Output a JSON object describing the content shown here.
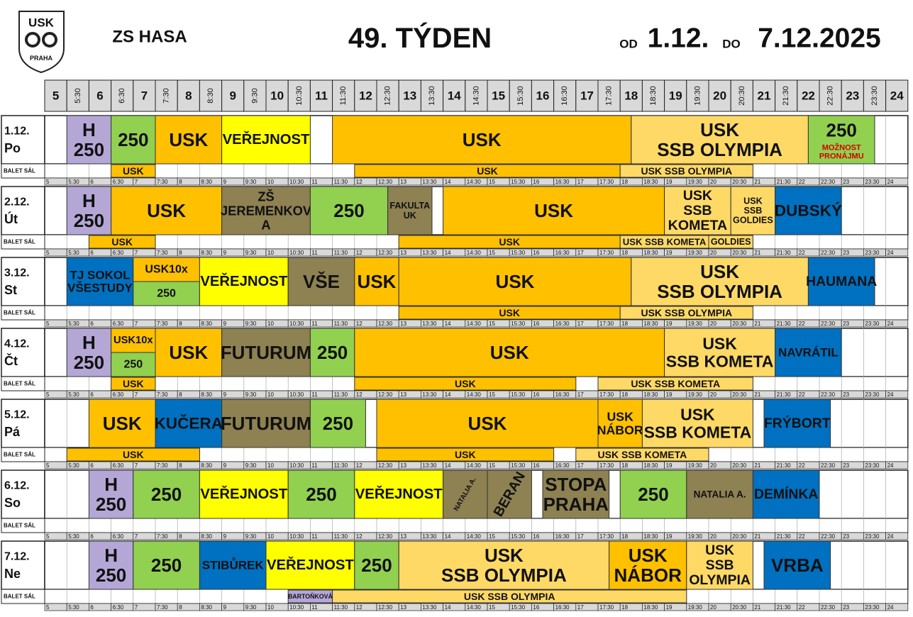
{
  "header": {
    "logo_top": "USK",
    "logo_bottom": "PRAHA",
    "venue": "ZS HASA",
    "week": "49. TÝDEN",
    "od": "OD",
    "from": "1.12.",
    "do": "DO",
    "to": "7.12.2025"
  },
  "times": [
    5,
    "5:30",
    6,
    "6:30",
    7,
    "7:30",
    8,
    "8:30",
    9,
    "9:30",
    10,
    "10:30",
    11,
    "11:30",
    12,
    "12:30",
    13,
    "13:30",
    14,
    "14:30",
    15,
    "15:30",
    16,
    "16:30",
    17,
    "17:30",
    18,
    "18:30",
    19,
    "19:30",
    20,
    "20:30",
    21,
    "21:30",
    22,
    "22:30",
    23,
    "23:30",
    24
  ],
  "balet_label": "BALET SÁL",
  "colors": {
    "usk": "#FFC000",
    "ssb": "#FFD966",
    "g": "#92D050",
    "y": "#FFFF00",
    "h": "#B4A7D6",
    "o": "#8E8152",
    "b": "#0070C0"
  },
  "days": [
    {
      "date": "1.12.",
      "day": "Po",
      "blocks": [
        {
          "s": 5.5,
          "e": 6.5,
          "c": "h",
          "lines": [
            "H",
            "250"
          ]
        },
        {
          "s": 6.5,
          "e": 7.5,
          "c": "g",
          "lines": [
            "250"
          ]
        },
        {
          "s": 7.5,
          "e": 9,
          "c": "usk",
          "lines": [
            "USK"
          ]
        },
        {
          "s": 9,
          "e": 11,
          "c": "y",
          "lines": [
            "VEŘEJNOST"
          ]
        },
        {
          "s": 11.5,
          "e": 18.25,
          "c": "usk",
          "lines": [
            "USK"
          ]
        },
        {
          "s": 18.25,
          "e": 22.25,
          "c": "ssb",
          "lines": [
            "USK",
            "SSB OLYMPIA"
          ]
        },
        {
          "s": 22.25,
          "e": 23.75,
          "c": "g",
          "lines": [
            "250"
          ],
          "note": [
            "MOŽNOST",
            "PRONÁJMU"
          ]
        }
      ],
      "balet": [
        {
          "s": 6.5,
          "e": 7.5,
          "c": "usk",
          "lines": [
            "USK"
          ]
        },
        {
          "s": 12,
          "e": 18,
          "c": "usk",
          "lines": [
            "USK"
          ]
        },
        {
          "s": 18,
          "e": 21,
          "c": "ssb",
          "lines": [
            "USK SSB OLYMPIA"
          ]
        }
      ]
    },
    {
      "date": "2.12.",
      "day": "Út",
      "blocks": [
        {
          "s": 5.5,
          "e": 6.5,
          "c": "h",
          "lines": [
            "H",
            "250"
          ]
        },
        {
          "s": 6.5,
          "e": 9,
          "c": "usk",
          "lines": [
            "USK"
          ]
        },
        {
          "s": 9,
          "e": 11,
          "c": "o",
          "lines": [
            "ZŠ",
            "JEREMENKOV",
            "A"
          ]
        },
        {
          "s": 11,
          "e": 12.75,
          "c": "g",
          "lines": [
            "250"
          ]
        },
        {
          "s": 12.75,
          "e": 13.75,
          "c": "o",
          "lines": [
            "FAKULTA",
            "UK"
          ]
        },
        {
          "s": 14,
          "e": 19,
          "c": "usk",
          "lines": [
            "USK"
          ]
        },
        {
          "s": 19,
          "e": 20.5,
          "c": "ssb",
          "lines": [
            "USK",
            "SSB",
            "KOMETA"
          ]
        },
        {
          "s": 20.5,
          "e": 21.5,
          "c": "ssb",
          "lines": [
            "USK",
            "SSB",
            "GOLDIES"
          ]
        },
        {
          "s": 21.5,
          "e": 23,
          "c": "b",
          "lines": [
            "DUBSKÝ"
          ]
        }
      ],
      "balet": [
        {
          "s": 6,
          "e": 7.5,
          "c": "usk",
          "lines": [
            "USK"
          ]
        },
        {
          "s": 13,
          "e": 18,
          "c": "usk",
          "lines": [
            "USK"
          ]
        },
        {
          "s": 18,
          "e": 20,
          "c": "ssb",
          "lines": [
            "USK SSB KOMETA"
          ]
        },
        {
          "s": 20,
          "e": 21,
          "c": "ssb",
          "lines": [
            "GOLDIES"
          ]
        }
      ]
    },
    {
      "date": "3.12.",
      "day": "St",
      "blocks": [
        {
          "s": 5.5,
          "e": 7,
          "c": "b",
          "lines": [
            "TJ SOKOL",
            "VŠESTUDY"
          ]
        },
        {
          "s": 7,
          "e": 8.5,
          "parts": [
            {
              "c": "usk",
              "lines": [
                "USK10x"
              ]
            },
            {
              "c": "g",
              "lines": [
                "250"
              ]
            }
          ]
        },
        {
          "s": 8.5,
          "e": 10.5,
          "c": "y",
          "lines": [
            "VEŘEJNOST"
          ]
        },
        {
          "s": 10.5,
          "e": 12,
          "c": "o",
          "lines": [
            "VŠE"
          ]
        },
        {
          "s": 12,
          "e": 13,
          "c": "usk",
          "lines": [
            "USK"
          ]
        },
        {
          "s": 13,
          "e": 18.25,
          "c": "usk",
          "lines": [
            "USK"
          ]
        },
        {
          "s": 18.25,
          "e": 22.25,
          "c": "ssb",
          "lines": [
            "USK",
            "SSB OLYMPIA"
          ]
        },
        {
          "s": 22.25,
          "e": 23.75,
          "c": "b",
          "lines": [
            "HAUMANA"
          ]
        }
      ],
      "balet": [
        {
          "s": 13,
          "e": 18,
          "c": "usk",
          "lines": [
            "USK"
          ]
        },
        {
          "s": 18,
          "e": 21,
          "c": "ssb",
          "lines": [
            "USK SSB OLYMPIA"
          ]
        }
      ]
    },
    {
      "date": "4.12.",
      "day": "Čt",
      "blocks": [
        {
          "s": 5.5,
          "e": 6.5,
          "c": "h",
          "lines": [
            "H",
            "250"
          ]
        },
        {
          "s": 6.5,
          "e": 7.5,
          "parts": [
            {
              "c": "usk",
              "lines": [
                "USK10x"
              ]
            },
            {
              "c": "g",
              "lines": [
                "250"
              ]
            }
          ]
        },
        {
          "s": 7.5,
          "e": 9,
          "c": "usk",
          "lines": [
            "USK"
          ]
        },
        {
          "s": 9,
          "e": 11,
          "c": "o",
          "lines": [
            "FUTURUM"
          ]
        },
        {
          "s": 11,
          "e": 12,
          "c": "g",
          "lines": [
            "250"
          ]
        },
        {
          "s": 12,
          "e": 19,
          "c": "usk",
          "lines": [
            "USK"
          ]
        },
        {
          "s": 19,
          "e": 21.5,
          "c": "ssb",
          "lines": [
            "USK",
            "SSB KOMETA"
          ]
        },
        {
          "s": 21.5,
          "e": 23,
          "c": "b",
          "lines": [
            "NAVRÁTIL"
          ]
        }
      ],
      "balet": [
        {
          "s": 6.5,
          "e": 7.5,
          "c": "usk",
          "lines": [
            "USK"
          ]
        },
        {
          "s": 12,
          "e": 17,
          "c": "usk",
          "lines": [
            "USK"
          ]
        },
        {
          "s": 17.5,
          "e": 21,
          "c": "ssb",
          "lines": [
            "USK SSB KOMETA"
          ]
        }
      ]
    },
    {
      "date": "5.12.",
      "day": "Pá",
      "blocks": [
        {
          "s": 6,
          "e": 7.5,
          "c": "usk",
          "lines": [
            "USK"
          ]
        },
        {
          "s": 7.5,
          "e": 9,
          "c": "b",
          "lines": [
            "KUČERA"
          ]
        },
        {
          "s": 9,
          "e": 11,
          "c": "o",
          "lines": [
            "FUTURUM"
          ]
        },
        {
          "s": 11,
          "e": 12.25,
          "c": "g",
          "lines": [
            "250"
          ]
        },
        {
          "s": 12.5,
          "e": 17.5,
          "c": "usk",
          "lines": [
            "USK"
          ]
        },
        {
          "s": 17.5,
          "e": 18.5,
          "c": "usk",
          "lines": [
            "USK",
            "NÁBOR"
          ]
        },
        {
          "s": 18.5,
          "e": 21,
          "c": "ssb",
          "lines": [
            "USK",
            "SSB KOMETA"
          ]
        },
        {
          "s": 21.25,
          "e": 22.75,
          "c": "b",
          "lines": [
            "FRÝBORT"
          ]
        }
      ],
      "balet": [
        {
          "s": 5.5,
          "e": 8.5,
          "c": "usk",
          "lines": [
            "USK"
          ]
        },
        {
          "s": 12.5,
          "e": 16.5,
          "c": "usk",
          "lines": [
            "USK"
          ]
        },
        {
          "s": 17,
          "e": 20,
          "c": "ssb",
          "lines": [
            "USK SSB KOMETA"
          ]
        }
      ]
    },
    {
      "date": "6.12.",
      "day": "So",
      "blocks": [
        {
          "s": 6,
          "e": 7,
          "c": "h",
          "lines": [
            "H",
            "250"
          ]
        },
        {
          "s": 7,
          "e": 8.5,
          "c": "g",
          "lines": [
            "250"
          ]
        },
        {
          "s": 8.5,
          "e": 10.5,
          "c": "y",
          "lines": [
            "VEŘEJNOST"
          ]
        },
        {
          "s": 10.5,
          "e": 12,
          "c": "g",
          "lines": [
            "250"
          ]
        },
        {
          "s": 12,
          "e": 14,
          "c": "y",
          "lines": [
            "VEŘEJNOST"
          ]
        },
        {
          "s": 14,
          "e": 15,
          "c": "o",
          "lines": [
            "NATALIA A."
          ],
          "rot": true
        },
        {
          "s": 15,
          "e": 16,
          "c": "o",
          "lines": [
            "BERAN"
          ],
          "rot": true
        },
        {
          "s": 16.25,
          "e": 17.75,
          "c": "o",
          "lines": [
            "STOPA",
            "PRAHA"
          ]
        },
        {
          "s": 18,
          "e": 19.5,
          "c": "g",
          "lines": [
            "250"
          ]
        },
        {
          "s": 19.5,
          "e": 21,
          "c": "o",
          "lines": [
            "NATALIA A."
          ]
        },
        {
          "s": 21,
          "e": 22.5,
          "c": "b",
          "lines": [
            "DEMÍNKA"
          ]
        }
      ],
      "balet": []
    },
    {
      "date": "7.12.",
      "day": "Ne",
      "blocks": [
        {
          "s": 6,
          "e": 7,
          "c": "h",
          "lines": [
            "H",
            "250"
          ]
        },
        {
          "s": 7,
          "e": 8.5,
          "c": "g",
          "lines": [
            "250"
          ]
        },
        {
          "s": 8.5,
          "e": 10,
          "c": "b",
          "lines": [
            "STIBŮREK"
          ]
        },
        {
          "s": 10,
          "e": 12,
          "c": "y",
          "lines": [
            "VEŘEJNOST"
          ]
        },
        {
          "s": 12,
          "e": 13,
          "c": "g",
          "lines": [
            "250"
          ]
        },
        {
          "s": 13,
          "e": 17.75,
          "c": "ssb",
          "lines": [
            "USK",
            "SSB OLYMPIA"
          ]
        },
        {
          "s": 17.75,
          "e": 19.5,
          "c": "usk",
          "lines": [
            "USK",
            "NÁBOR"
          ]
        },
        {
          "s": 19.5,
          "e": 21,
          "c": "ssb",
          "lines": [
            "USK",
            "SSB",
            "OLYMPIA"
          ]
        },
        {
          "s": 21.25,
          "e": 22.75,
          "c": "b",
          "lines": [
            "VRBA"
          ]
        }
      ],
      "balet": [
        {
          "s": 10.5,
          "e": 11.5,
          "c": "h",
          "lines": [
            "BARTOŇKOVÁ"
          ]
        },
        {
          "s": 11.5,
          "e": 19.5,
          "c": "ssb",
          "lines": [
            "USK SSB OLYMPIA"
          ]
        }
      ]
    }
  ]
}
